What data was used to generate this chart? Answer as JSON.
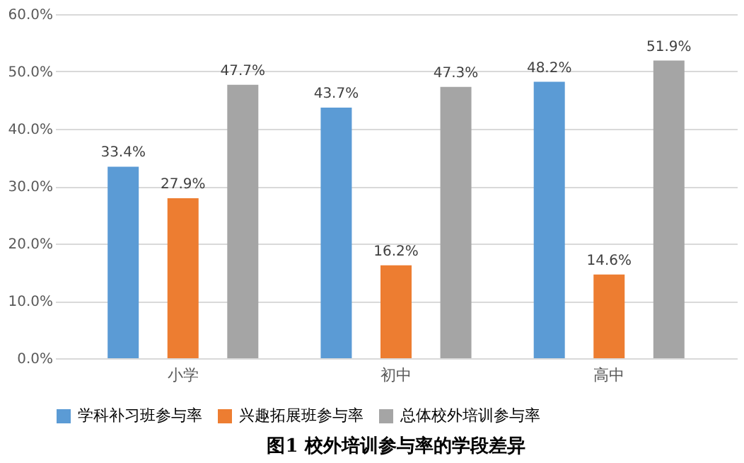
{
  "chart_data": {
    "type": "bar",
    "title": "图1 校外培训参与率的学段差异",
    "categories": [
      "小学",
      "初中",
      "高中"
    ],
    "series": [
      {
        "name": "学科补习班参与率",
        "color": "#5b9bd5",
        "values": [
          33.4,
          43.7,
          48.2
        ],
        "value_labels": [
          "33.4%",
          "43.7%",
          "48.2%"
        ]
      },
      {
        "name": "兴趣拓展班参与率",
        "color": "#ed7d31",
        "values": [
          27.9,
          16.2,
          14.6
        ],
        "value_labels": [
          "27.9%",
          "16.2%",
          "14.6%"
        ]
      },
      {
        "name": "总体校外培训参与率",
        "color": "#a5a5a5",
        "values": [
          47.7,
          47.3,
          51.9
        ],
        "value_labels": [
          "47.7%",
          "47.3%",
          "51.9%"
        ]
      }
    ],
    "ylim": [
      0,
      60
    ],
    "yticks": [
      {
        "value": 0,
        "label": "0.0%"
      },
      {
        "value": 10,
        "label": "10.0%"
      },
      {
        "value": 20,
        "label": "20.0%"
      },
      {
        "value": 30,
        "label": "30.0%"
      },
      {
        "value": 40,
        "label": "40.0%"
      },
      {
        "value": 50,
        "label": "50.0%"
      },
      {
        "value": 60,
        "label": "60.0%"
      }
    ],
    "grid": "y",
    "legend": "bottom"
  }
}
